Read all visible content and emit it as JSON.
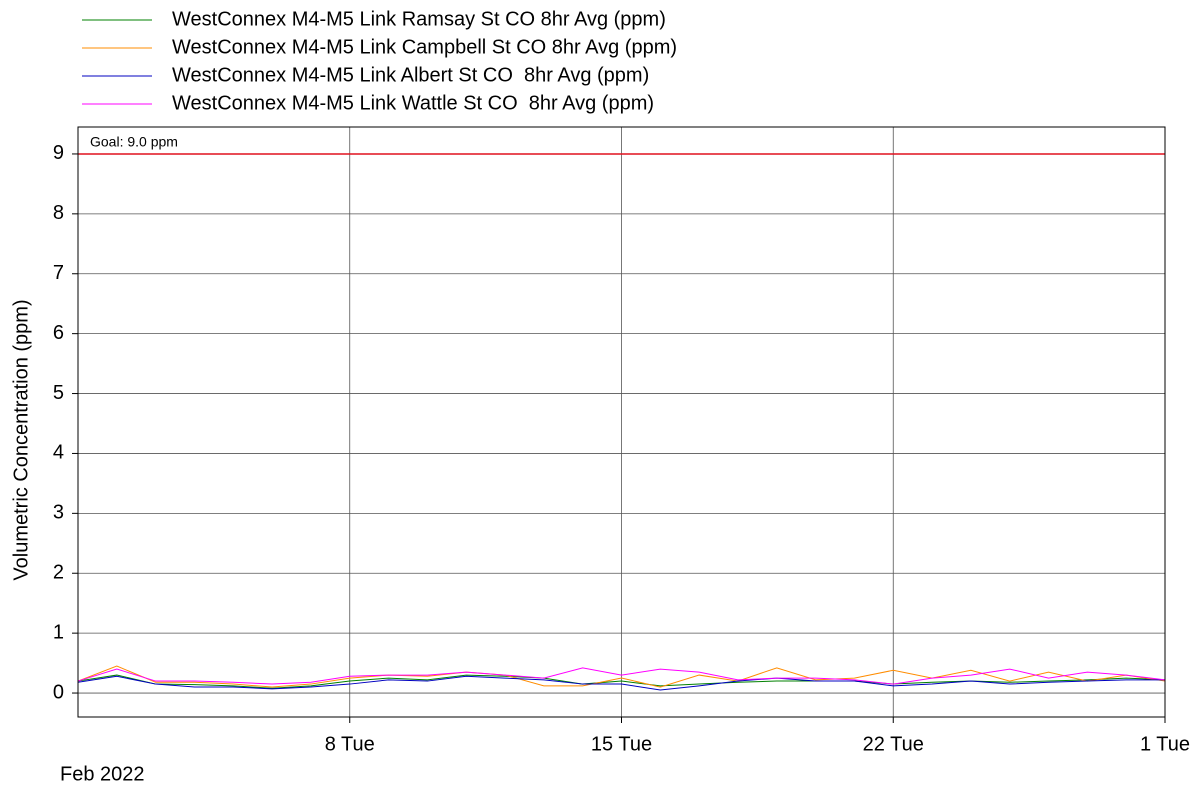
{
  "chart_data": {
    "type": "line",
    "ylabel": "Volumetric Concentration (ppm)",
    "x_period_label": "Feb 2022",
    "x": [
      "2022-02-01",
      "2022-02-02",
      "2022-02-03",
      "2022-02-04",
      "2022-02-05",
      "2022-02-06",
      "2022-02-07",
      "2022-02-08",
      "2022-02-09",
      "2022-02-10",
      "2022-02-11",
      "2022-02-12",
      "2022-02-13",
      "2022-02-14",
      "2022-02-15",
      "2022-02-16",
      "2022-02-17",
      "2022-02-18",
      "2022-02-19",
      "2022-02-20",
      "2022-02-21",
      "2022-02-22",
      "2022-02-23",
      "2022-02-24",
      "2022-02-25",
      "2022-02-26",
      "2022-02-27",
      "2022-02-28",
      "2022-03-01"
    ],
    "series": [
      {
        "name": "WestConnex M4-M5 Link Ramsay St CO 8hr Avg (ppm)",
        "color": "#008000",
        "values": [
          0.2,
          0.3,
          0.15,
          0.14,
          0.12,
          0.08,
          0.12,
          0.2,
          0.25,
          0.22,
          0.3,
          0.28,
          0.25,
          0.15,
          0.2,
          0.12,
          0.15,
          0.18,
          0.2,
          0.2,
          0.2,
          0.15,
          0.18,
          0.2,
          0.18,
          0.2,
          0.22,
          0.25,
          0.22
        ]
      },
      {
        "name": "WestConnex M4-M5 Link Campbell St CO 8hr Avg (ppm)",
        "color": "#ff8c00",
        "values": [
          0.2,
          0.45,
          0.18,
          0.18,
          0.15,
          0.1,
          0.15,
          0.25,
          0.3,
          0.28,
          0.35,
          0.3,
          0.12,
          0.12,
          0.25,
          0.1,
          0.3,
          0.2,
          0.42,
          0.22,
          0.25,
          0.38,
          0.25,
          0.38,
          0.2,
          0.35,
          0.2,
          0.3,
          0.2
        ]
      },
      {
        "name": "WestConnex M4-M5 Link Albert St CO  8hr Avg (ppm)",
        "color": "#0000c0",
        "values": [
          0.18,
          0.28,
          0.15,
          0.1,
          0.1,
          0.07,
          0.1,
          0.15,
          0.22,
          0.2,
          0.28,
          0.25,
          0.22,
          0.15,
          0.15,
          0.05,
          0.12,
          0.2,
          0.25,
          0.2,
          0.2,
          0.12,
          0.15,
          0.2,
          0.15,
          0.18,
          0.2,
          0.22,
          0.22
        ]
      },
      {
        "name": "WestConnex M4-M5 Link Wattle St CO  8hr Avg (ppm)",
        "color": "#ff00ff",
        "values": [
          0.2,
          0.4,
          0.2,
          0.2,
          0.18,
          0.15,
          0.18,
          0.28,
          0.3,
          0.3,
          0.35,
          0.3,
          0.25,
          0.42,
          0.3,
          0.4,
          0.35,
          0.22,
          0.25,
          0.25,
          0.22,
          0.15,
          0.25,
          0.3,
          0.4,
          0.25,
          0.35,
          0.3,
          0.22
        ]
      }
    ],
    "goal": {
      "value": 9,
      "label": "Goal: 9.0 ppm",
      "color": "#e0101f"
    },
    "xlim": [
      "2022-02-01",
      "2022-03-01"
    ],
    "xticks": [
      {
        "value": "2022-02-08",
        "label": "8 Tue"
      },
      {
        "value": "2022-02-15",
        "label": "15 Tue"
      },
      {
        "value": "2022-02-22",
        "label": "22 Tue"
      },
      {
        "value": "2022-03-01",
        "label": "1 Tue"
      }
    ],
    "ylim": [
      -0.4,
      9.45
    ],
    "yticks": [
      0,
      1,
      2,
      3,
      4,
      5,
      6,
      7,
      8,
      9
    ],
    "grid": true
  }
}
